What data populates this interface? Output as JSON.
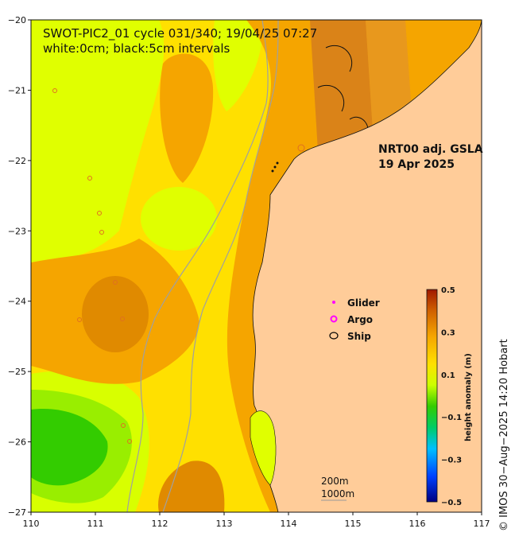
{
  "title": {
    "line1": "SWOT-PIC2_01 cycle 031/340; 19/04/25 07:27",
    "line2": "white:0cm; black:5cm intervals"
  },
  "product": {
    "line1": "NRT00 adj. GSLA",
    "line2": "19 Apr 2025"
  },
  "axes": {
    "x_ticks": [
      "110",
      "111",
      "112",
      "113",
      "114",
      "115",
      "116",
      "117"
    ],
    "y_ticks": [
      "−20",
      "−21",
      "−22",
      "−23",
      "−24",
      "−25",
      "−26",
      "−27"
    ],
    "lon_range": [
      110,
      117
    ],
    "lat_range": [
      -27,
      -20
    ]
  },
  "legend": {
    "glider": "Glider",
    "argo": "Argo",
    "ship": "Ship",
    "glider_color": "#ff00ff",
    "argo_color": "#ff00ff",
    "ship_color": "#000000"
  },
  "scale": {
    "depth1": "200m",
    "depth2": "1000m"
  },
  "colorbar": {
    "title": "height anomaly (m)",
    "ticks": [
      "0.5",
      "0.3",
      "0.1",
      "−0.1",
      "−0.3",
      "−0.5"
    ]
  },
  "copyright": "© IMOS 30−Aug−2025 14:20 Hobart",
  "colors": {
    "land": "#ffcc99",
    "yellow": "#ffe000",
    "lime": "#e0ff00",
    "orange": "#f5a500",
    "dark_orange": "#e08a00",
    "green": "#33cc00",
    "light_green": "#99ee00"
  }
}
